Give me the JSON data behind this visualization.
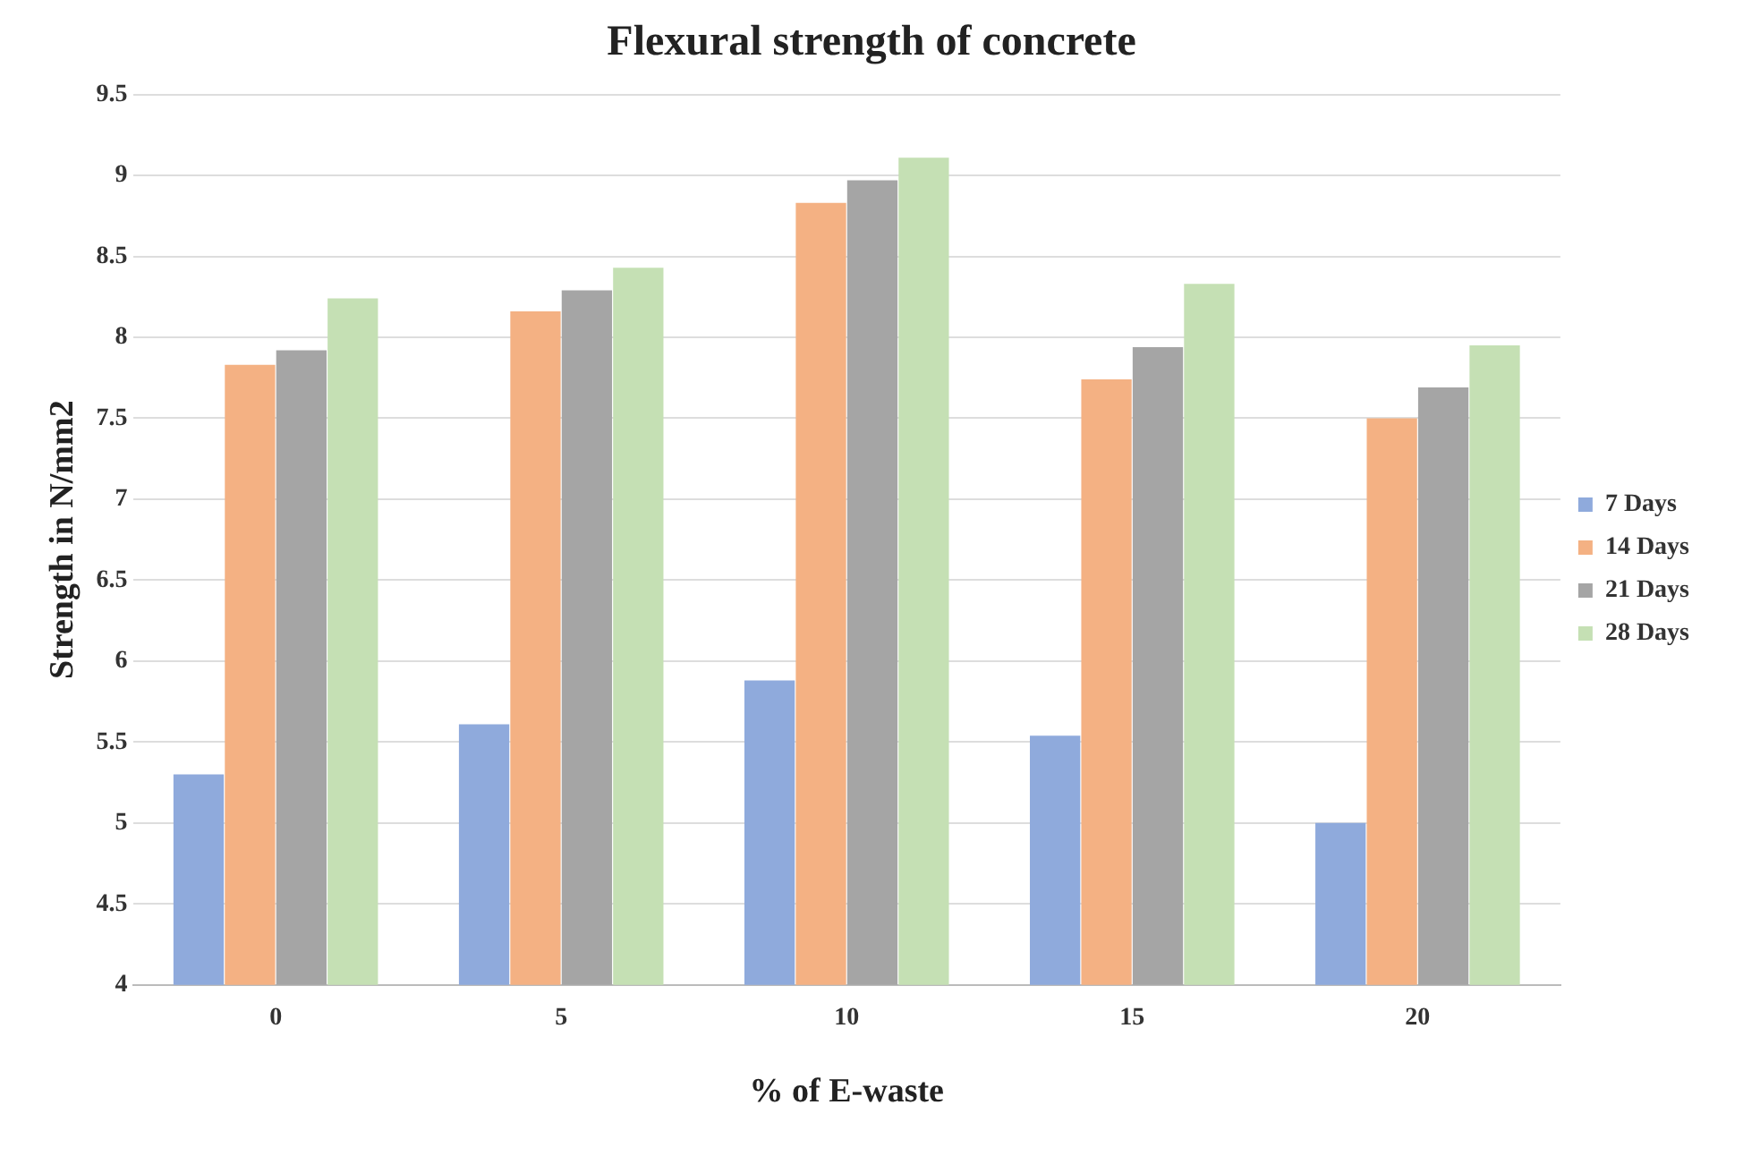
{
  "chart_data": {
    "type": "bar",
    "title": "Flexural strength of concrete",
    "xlabel": "% of E-waste",
    "ylabel": "Strength in N/mm2",
    "categories": [
      "0",
      "5",
      "10",
      "15",
      "20"
    ],
    "series": [
      {
        "name": "7 Days",
        "color": "#8faadc",
        "values": [
          5.3,
          5.61,
          5.88,
          5.54,
          5.0
        ]
      },
      {
        "name": "14 Days",
        "color": "#f4b183",
        "values": [
          7.83,
          8.16,
          8.83,
          7.74,
          7.5
        ]
      },
      {
        "name": "21 Days",
        "color": "#a5a5a5",
        "values": [
          7.92,
          8.29,
          8.97,
          7.94,
          7.69
        ]
      },
      {
        "name": "28 Days",
        "color": "#c5e0b4",
        "values": [
          8.24,
          8.43,
          9.11,
          8.33,
          7.95
        ]
      }
    ],
    "ylim": [
      4,
      9.5
    ],
    "yticks": [
      4,
      4.5,
      5,
      5.5,
      6,
      6.5,
      7,
      7.5,
      8,
      8.5,
      9,
      9.5
    ],
    "grid": "y",
    "legend": "right"
  }
}
